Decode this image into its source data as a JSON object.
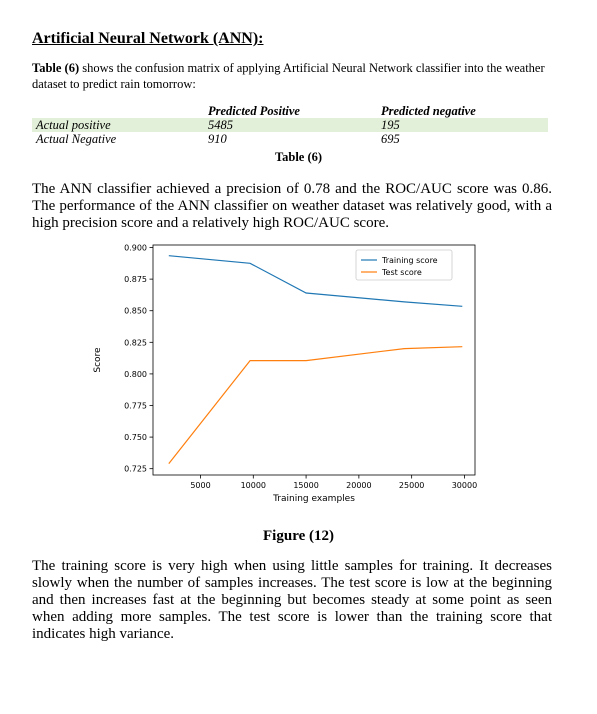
{
  "heading": "Artificial Neural Network (ANN):",
  "intro": {
    "ref": "Table (6)",
    "text": " shows the confusion matrix of applying Artificial Neural Network classifier into the weather dataset to predict rain tomorrow:"
  },
  "confusion_matrix": {
    "col_headers": [
      "Predicted Positive",
      "Predicted negative"
    ],
    "rows": [
      {
        "label": "Actual positive",
        "values": [
          "5485",
          "195"
        ]
      },
      {
        "label": "Actual Negative",
        "values": [
          "910",
          "695"
        ]
      }
    ]
  },
  "table_caption": "Table (6)",
  "paragraph1": "The ANN classifier achieved a precision of 0.78 and the ROC/AUC score was 0.86. The performance of the ANN classifier on weather dataset was relatively good, with a high precision score and a relatively high ROC/AUC score.",
  "figure_caption": "Figure (12)",
  "paragraph2": "The training score is very high when using little samples for training. It decreases slowly when the number of samples increases. The test score is low at the beginning and then increases fast at the beginning but becomes steady at some point as seen when adding more samples. The test score is lower than the training score that indicates high variance.",
  "colors": {
    "training": "#1f77b4",
    "test": "#ff7f0e",
    "table_shade": "#e2efd9"
  },
  "chart_data": {
    "type": "line",
    "xlabel": "Training examples",
    "ylabel": "Score",
    "xlim": [
      500,
      31000
    ],
    "ylim": [
      0.72,
      0.902
    ],
    "x_ticks": [
      5000,
      10000,
      15000,
      20000,
      25000,
      30000
    ],
    "x_tick_labels": [
      "5000",
      "10000",
      "15000",
      "20000",
      "25000",
      "30000"
    ],
    "y_ticks": [
      0.725,
      0.75,
      0.775,
      0.8,
      0.825,
      0.85,
      0.875,
      0.9
    ],
    "y_tick_labels": [
      "0.725",
      "0.750",
      "0.775",
      "0.800",
      "0.825",
      "0.850",
      "0.875",
      "0.900"
    ],
    "legend_position": "top-right",
    "series": [
      {
        "name": "Training score",
        "x": [
          2000,
          9700,
          15000,
          24300,
          29800
        ],
        "y": [
          0.8935,
          0.8875,
          0.864,
          0.857,
          0.8535
        ]
      },
      {
        "name": "Test score",
        "x": [
          2000,
          9700,
          15000,
          24300,
          29800
        ],
        "y": [
          0.729,
          0.8105,
          0.8105,
          0.82,
          0.8215
        ]
      }
    ]
  }
}
